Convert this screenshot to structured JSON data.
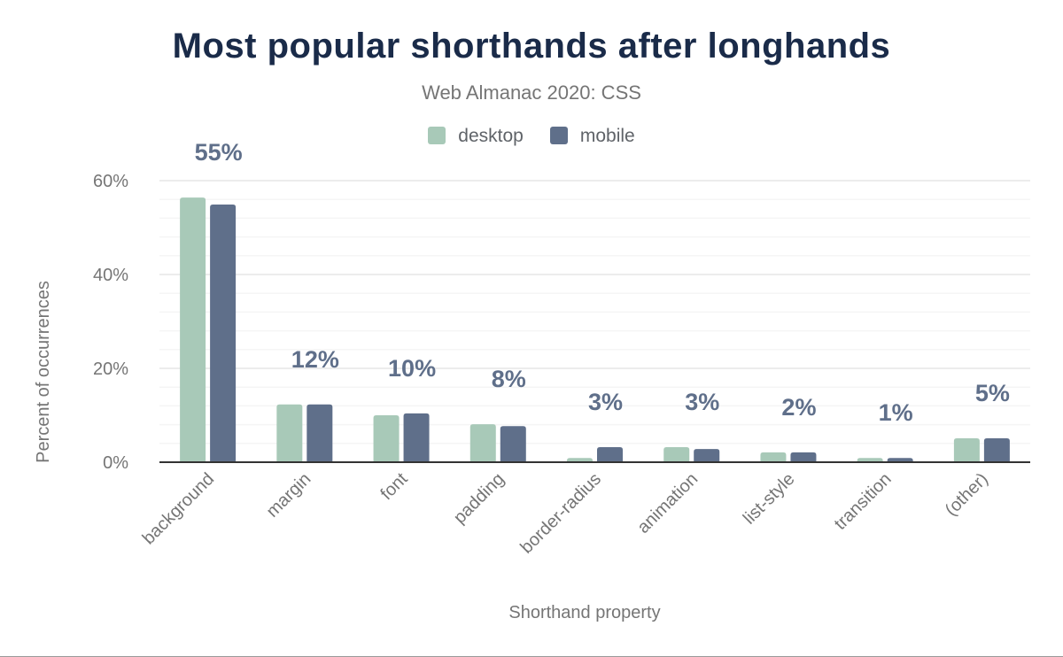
{
  "chart_data": {
    "type": "bar",
    "title": "Most popular shorthands after longhands",
    "subtitle": "Web Almanac 2020: CSS",
    "xlabel": "Shorthand property",
    "ylabel": "Percent of occurrences",
    "ylim": [
      0,
      60
    ],
    "yticks": [
      "0%",
      "20%",
      "40%",
      "60%"
    ],
    "grid": true,
    "legend_placement": "top",
    "categories": [
      "background",
      "margin",
      "font",
      "padding",
      "border-radius",
      "animation",
      "list-style",
      "transition",
      "(other)"
    ],
    "series": [
      {
        "name": "desktop",
        "color": "#a8c9b8",
        "values": [
          56.4,
          12.3,
          10.0,
          8.1,
          0.9,
          3.2,
          2.1,
          0.9,
          5.1
        ]
      },
      {
        "name": "mobile",
        "color": "#5f6f8a",
        "values": [
          54.9,
          12.3,
          10.4,
          7.7,
          3.2,
          2.8,
          2.1,
          0.9,
          5.1
        ]
      }
    ],
    "data_labels": [
      "55%",
      "12%",
      "10%",
      "8%",
      "3%",
      "3%",
      "2%",
      "1%",
      "5%"
    ]
  }
}
